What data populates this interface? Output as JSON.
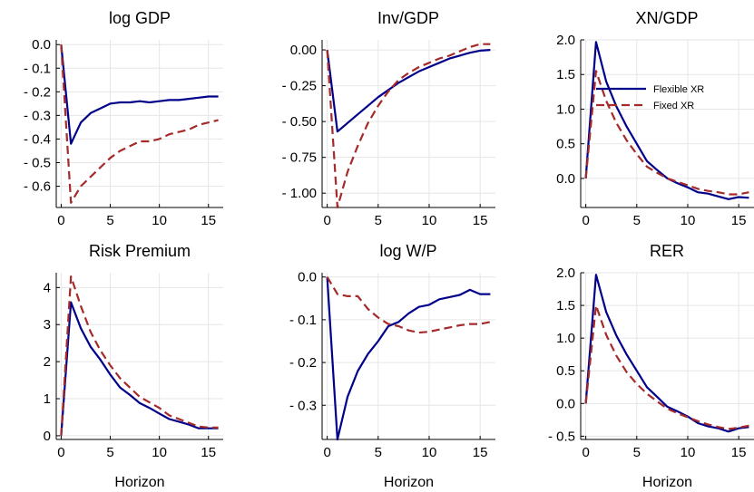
{
  "chart_data": {
    "type": "line",
    "legend": {
      "position": "top-right",
      "entries": [
        {
          "name": "Flexible XR",
          "color": "#00008b",
          "dash": "solid"
        },
        {
          "name": "Fixed XR",
          "color": "#a52a2a",
          "dash": "dashed"
        }
      ]
    },
    "x": [
      0,
      1,
      2,
      3,
      4,
      5,
      6,
      7,
      8,
      9,
      10,
      11,
      12,
      13,
      14,
      15,
      16
    ],
    "grid": true,
    "panels": [
      {
        "title": "log GDP",
        "xlabel": "",
        "xlim": [
          -0.5,
          16.5
        ],
        "ylim": [
          -0.69,
          0.02
        ],
        "xticks": [
          0,
          5,
          10,
          15
        ],
        "xtick_labels": [
          "0",
          "5",
          "10",
          "15"
        ],
        "yticks": [
          0.0,
          -0.1,
          -0.2,
          -0.3,
          -0.4,
          -0.5,
          -0.6
        ],
        "ytick_labels": [
          "0.0",
          "- 0.1",
          "- 0.2",
          "- 0.3",
          "- 0.4",
          "- 0.5",
          "- 0.6"
        ],
        "series": [
          {
            "name": "Flexible XR",
            "values": [
              0.0,
              -0.42,
              -0.33,
              -0.29,
              -0.27,
              -0.25,
              -0.245,
              -0.245,
              -0.24,
              -0.245,
              -0.24,
              -0.235,
              -0.235,
              -0.23,
              -0.225,
              -0.22,
              -0.22
            ]
          },
          {
            "name": "Fixed XR",
            "values": [
              0.0,
              -0.67,
              -0.6,
              -0.56,
              -0.52,
              -0.48,
              -0.45,
              -0.43,
              -0.41,
              -0.41,
              -0.4,
              -0.38,
              -0.37,
              -0.36,
              -0.34,
              -0.33,
              -0.32
            ]
          }
        ]
      },
      {
        "title": "Inv/GDP",
        "xlabel": "",
        "xlim": [
          -0.5,
          16.5
        ],
        "ylim": [
          -1.1,
          0.07
        ],
        "xticks": [
          0,
          5,
          10,
          15
        ],
        "xtick_labels": [
          "0",
          "5",
          "10",
          "15"
        ],
        "yticks": [
          0.0,
          -0.25,
          -0.5,
          -0.75,
          -1.0
        ],
        "ytick_labels": [
          "0.00",
          "- 0.25",
          "- 0.50",
          "- 0.75",
          "- 1.00"
        ],
        "series": [
          {
            "name": "Flexible XR",
            "values": [
              0.0,
              -0.57,
              -0.51,
              -0.45,
              -0.39,
              -0.33,
              -0.28,
              -0.23,
              -0.19,
              -0.15,
              -0.12,
              -0.09,
              -0.06,
              -0.04,
              -0.02,
              -0.005,
              0.0
            ]
          },
          {
            "name": "Fixed XR",
            "values": [
              0.0,
              -1.1,
              -0.85,
              -0.67,
              -0.51,
              -0.39,
              -0.29,
              -0.21,
              -0.16,
              -0.12,
              -0.09,
              -0.06,
              -0.04,
              -0.01,
              0.02,
              0.04,
              0.04
            ]
          }
        ]
      },
      {
        "title": "XN/GDP",
        "xlabel": "",
        "xlim": [
          -0.5,
          16.5
        ],
        "ylim": [
          -0.42,
          2.0
        ],
        "xticks": [
          0,
          5,
          10,
          15
        ],
        "xtick_labels": [
          "0",
          "5",
          "10",
          "15"
        ],
        "yticks": [
          2.0,
          1.5,
          1.0,
          0.5,
          0.0
        ],
        "ytick_labels": [
          "2.0",
          "1.5",
          "1.0",
          "0.5",
          "0.0"
        ],
        "series": [
          {
            "name": "Flexible XR",
            "values": [
              0.0,
              1.97,
              1.4,
              1.04,
              0.75,
              0.5,
              0.25,
              0.12,
              0.0,
              -0.07,
              -0.13,
              -0.2,
              -0.22,
              -0.26,
              -0.3,
              -0.27,
              -0.28
            ]
          },
          {
            "name": "Fixed XR",
            "values": [
              0.0,
              1.55,
              1.12,
              0.8,
              0.55,
              0.35,
              0.17,
              0.08,
              0.0,
              -0.05,
              -0.1,
              -0.15,
              -0.18,
              -0.2,
              -0.23,
              -0.23,
              -0.2
            ]
          }
        ]
      },
      {
        "title": "Risk Premium",
        "xlabel": "Horizon",
        "xlim": [
          -0.5,
          16.5
        ],
        "ylim": [
          -0.1,
          4.4
        ],
        "xticks": [
          0,
          5,
          10,
          15
        ],
        "xtick_labels": [
          "0",
          "5",
          "10",
          "15"
        ],
        "yticks": [
          0,
          1,
          2,
          3,
          4
        ],
        "ytick_labels": [
          "0",
          "1",
          "2",
          "3",
          "4"
        ],
        "series": [
          {
            "name": "Flexible XR",
            "values": [
              0.0,
              3.6,
              2.9,
              2.4,
              2.05,
              1.65,
              1.3,
              1.1,
              0.88,
              0.75,
              0.6,
              0.45,
              0.38,
              0.3,
              0.2,
              0.2,
              0.2
            ]
          },
          {
            "name": "Fixed XR",
            "values": [
              0.0,
              4.3,
              3.5,
              2.8,
              2.3,
              1.9,
              1.55,
              1.3,
              1.05,
              0.9,
              0.75,
              0.55,
              0.45,
              0.35,
              0.25,
              0.22,
              0.22
            ]
          }
        ]
      },
      {
        "title": "log W/P",
        "xlabel": "Horizon",
        "xlim": [
          -0.5,
          16.5
        ],
        "ylim": [
          -0.38,
          0.01
        ],
        "xticks": [
          0,
          5,
          10,
          15
        ],
        "xtick_labels": [
          "0",
          "5",
          "10",
          "15"
        ],
        "yticks": [
          0.0,
          -0.1,
          -0.2,
          -0.3
        ],
        "ytick_labels": [
          "0.0",
          "- 0.1",
          "- 0.2",
          "- 0.3"
        ],
        "series": [
          {
            "name": "Flexible XR",
            "values": [
              0.0,
              -0.38,
              -0.28,
              -0.22,
              -0.18,
              -0.15,
              -0.115,
              -0.105,
              -0.085,
              -0.07,
              -0.065,
              -0.052,
              -0.047,
              -0.042,
              -0.03,
              -0.04,
              -0.04
            ]
          },
          {
            "name": "Fixed XR",
            "values": [
              0.0,
              -0.04,
              -0.045,
              -0.045,
              -0.075,
              -0.095,
              -0.11,
              -0.115,
              -0.125,
              -0.13,
              -0.128,
              -0.123,
              -0.118,
              -0.113,
              -0.11,
              -0.11,
              -0.105
            ]
          }
        ]
      },
      {
        "title": "RER",
        "xlabel": "Horizon",
        "xlim": [
          -0.5,
          16.5
        ],
        "ylim": [
          -0.55,
          2.0
        ],
        "xticks": [
          0,
          5,
          10,
          15
        ],
        "xtick_labels": [
          "0",
          "5",
          "10",
          "15"
        ],
        "yticks": [
          2.0,
          1.5,
          1.0,
          0.5,
          0.0,
          -0.5
        ],
        "ytick_labels": [
          "2.0",
          "1.5",
          "1.0",
          "0.5",
          "0.0",
          "- 0.5"
        ],
        "series": [
          {
            "name": "Flexible XR",
            "values": [
              0.0,
              1.97,
              1.4,
              1.04,
              0.75,
              0.5,
              0.25,
              0.1,
              -0.05,
              -0.12,
              -0.2,
              -0.3,
              -0.35,
              -0.38,
              -0.43,
              -0.38,
              -0.36
            ]
          },
          {
            "name": "Fixed XR",
            "values": [
              0.0,
              1.5,
              1.05,
              0.73,
              0.48,
              0.3,
              0.15,
              0.03,
              -0.08,
              -0.15,
              -0.21,
              -0.27,
              -0.32,
              -0.36,
              -0.39,
              -0.37,
              -0.34
            ]
          }
        ]
      }
    ]
  }
}
